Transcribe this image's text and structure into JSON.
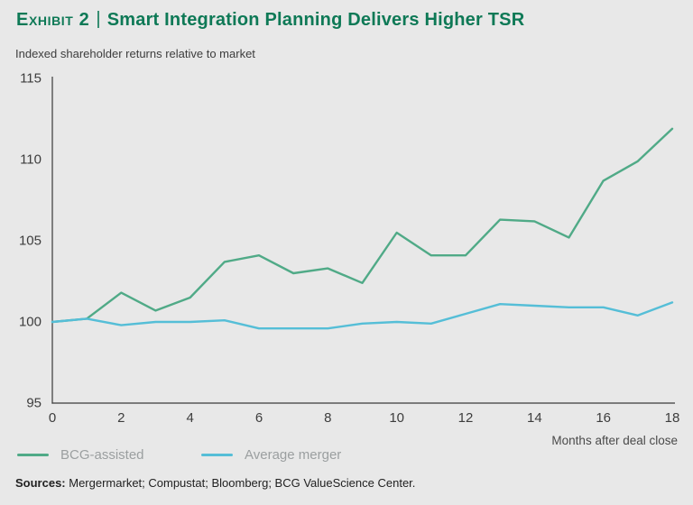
{
  "page": {
    "background_color": "#e8e8e8"
  },
  "header": {
    "exhibit_label": "Exhibit 2",
    "separator": "|",
    "title": "Smart Integration Planning Delivers Higher TSR",
    "subtitle": "Indexed shareholder returns relative to market",
    "title_color": "#0E7956"
  },
  "chart_data": {
    "type": "line",
    "x": [
      0,
      1,
      2,
      3,
      4,
      5,
      6,
      7,
      8,
      9,
      10,
      11,
      12,
      13,
      14,
      15,
      16,
      17,
      18
    ],
    "series": [
      {
        "name": "BCG-assisted",
        "color": "#50AA87",
        "values": [
          100.0,
          100.2,
          101.8,
          100.7,
          101.5,
          103.7,
          104.1,
          103.0,
          103.3,
          102.4,
          105.5,
          104.1,
          104.1,
          106.3,
          106.2,
          105.2,
          108.7,
          109.9,
          111.9
        ]
      },
      {
        "name": "Average merger",
        "color": "#55BED7",
        "values": [
          100.0,
          100.2,
          99.8,
          100.0,
          100.0,
          100.1,
          99.6,
          99.6,
          99.6,
          99.9,
          100.0,
          99.9,
          100.5,
          101.1,
          101.0,
          100.9,
          100.9,
          100.4,
          101.2
        ]
      }
    ],
    "title": "Smart Integration Planning Delivers Higher TSR",
    "subtitle": "Indexed shareholder returns relative to market",
    "xlabel": "Months after deal close",
    "ylabel": "",
    "xlim": [
      0,
      18
    ],
    "ylim": [
      95,
      115
    ],
    "x_ticks": [
      0,
      2,
      4,
      6,
      8,
      10,
      12,
      14,
      16,
      18
    ],
    "y_ticks": [
      95,
      100,
      105,
      110,
      115
    ],
    "grid": false,
    "legend_position": "bottom-left",
    "axis_color": "#3a3a3a"
  },
  "footer": {
    "sources_label": "Sources:",
    "sources_text": " Mergermarket; Compustat; Bloomberg; BCG ValueScience Center."
  }
}
